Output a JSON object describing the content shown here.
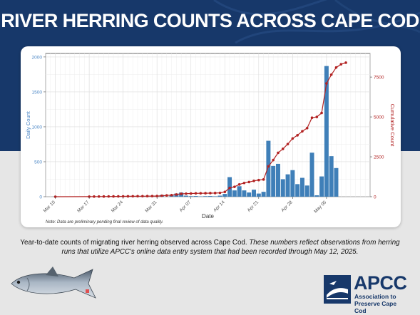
{
  "headline": "RIVER HERRING COUNTS ACROSS CAPE COD",
  "caption": {
    "normal": "Year-to-date counts of migrating river herring observed across Cape Cod.",
    "italic": "These numbers reflect observations from herring runs that utilize APCC's online data entry system that had been recorded through May 12, 2025."
  },
  "logo": {
    "name": "APCC",
    "tagline_1": "Association to",
    "tagline_2": "Preserve Cape Cod"
  },
  "colors": {
    "band": "#17386a",
    "bars": "#3f7fb8",
    "cumulative": "#b22222",
    "daily_axis": "#4a86c5",
    "cumulative_axis": "#b22222"
  },
  "icons": [
    "fish-illustration",
    "apcc-logo-mark"
  ],
  "chart_data": {
    "type": "bar",
    "xlabel": "Date",
    "ylabel_left": "Daily Count",
    "ylabel_right": "Cumulative Count",
    "note": "Note: Data are preliminary pending final review of data quality.",
    "x_ticks": [
      {
        "date": "2025-03-10",
        "label": "Mar 10"
      },
      {
        "date": "2025-03-17",
        "label": "Mar 17"
      },
      {
        "date": "2025-03-24",
        "label": "Mar 24"
      },
      {
        "date": "2025-03-31",
        "label": "Mar 31"
      },
      {
        "date": "2025-04-07",
        "label": "Apr 07"
      },
      {
        "date": "2025-04-14",
        "label": "Apr 14"
      },
      {
        "date": "2025-04-21",
        "label": "Apr 21"
      },
      {
        "date": "2025-04-28",
        "label": "Apr 28"
      },
      {
        "date": "2025-05-05",
        "label": "May 05"
      }
    ],
    "xlim": [
      "2025-03-08",
      "2025-05-14"
    ],
    "y_left_ticks": [
      0,
      500,
      1000,
      1500,
      2000
    ],
    "ylim_left": [
      0,
      2050
    ],
    "y_right_ticks": [
      0,
      2500,
      5000,
      7500
    ],
    "ylim_right": [
      0,
      8979
    ],
    "grid": true,
    "series": [
      {
        "name": "Daily Count",
        "kind": "bar",
        "x": [
          "2025-03-10",
          "2025-03-15",
          "2025-03-19",
          "2025-03-24",
          "2025-03-28",
          "2025-04-01",
          "2025-04-03",
          "2025-04-04",
          "2025-04-05",
          "2025-04-06",
          "2025-04-07",
          "2025-04-08",
          "2025-04-09",
          "2025-04-10",
          "2025-04-11",
          "2025-04-12",
          "2025-04-13",
          "2025-04-14",
          "2025-04-15",
          "2025-04-16",
          "2025-04-17",
          "2025-04-18",
          "2025-04-19",
          "2025-04-20",
          "2025-04-21",
          "2025-04-22",
          "2025-04-23",
          "2025-04-24",
          "2025-04-25",
          "2025-04-26",
          "2025-04-27",
          "2025-04-28",
          "2025-04-29",
          "2025-04-30",
          "2025-05-01",
          "2025-05-02",
          "2025-05-03",
          "2025-05-04",
          "2025-05-05",
          "2025-05-06",
          "2025-05-07",
          "2025-05-08",
          "2025-05-09",
          "2025-05-10"
        ],
        "values": [
          2,
          4,
          3,
          3,
          5,
          25,
          25,
          45,
          60,
          15,
          8,
          10,
          5,
          8,
          10,
          6,
          15,
          40,
          280,
          90,
          150,
          90,
          60,
          100,
          45,
          70,
          800,
          440,
          470,
          250,
          320,
          380,
          180,
          270,
          160,
          630,
          20,
          290,
          1870,
          580,
          410,
          0,
          0,
          0
        ]
      },
      {
        "name": "Cumulative Count",
        "kind": "line",
        "x": [
          "2025-03-10",
          "2025-03-17",
          "2025-03-18",
          "2025-03-19",
          "2025-03-20",
          "2025-03-21",
          "2025-03-22",
          "2025-03-23",
          "2025-03-24",
          "2025-03-25",
          "2025-03-26",
          "2025-03-27",
          "2025-03-28",
          "2025-03-29",
          "2025-03-30",
          "2025-03-31",
          "2025-04-01",
          "2025-04-02",
          "2025-04-03",
          "2025-04-04",
          "2025-04-05",
          "2025-04-06",
          "2025-04-07",
          "2025-04-08",
          "2025-04-09",
          "2025-04-10",
          "2025-04-11",
          "2025-04-12",
          "2025-04-13",
          "2025-04-14",
          "2025-04-15",
          "2025-04-16",
          "2025-04-17",
          "2025-04-18",
          "2025-04-19",
          "2025-04-20",
          "2025-04-21",
          "2025-04-22",
          "2025-04-23",
          "2025-04-24",
          "2025-04-25",
          "2025-04-26",
          "2025-04-27",
          "2025-04-28",
          "2025-04-29",
          "2025-04-30",
          "2025-05-01",
          "2025-05-02",
          "2025-05-03",
          "2025-05-04",
          "2025-05-05",
          "2025-05-06",
          "2025-05-07",
          "2025-05-08",
          "2025-05-09"
        ],
        "values": [
          0,
          5,
          8,
          10,
          12,
          15,
          18,
          20,
          22,
          25,
          28,
          30,
          32,
          35,
          38,
          40,
          60,
          80,
          100,
          140,
          180,
          190,
          200,
          210,
          215,
          220,
          225,
          230,
          240,
          300,
          550,
          620,
          770,
          860,
          920,
          990,
          1040,
          1080,
          1900,
          2300,
          2750,
          3000,
          3300,
          3650,
          3850,
          4100,
          4300,
          4950,
          5000,
          5250,
          7100,
          7650,
          8100,
          8300,
          8400
        ]
      }
    ]
  }
}
